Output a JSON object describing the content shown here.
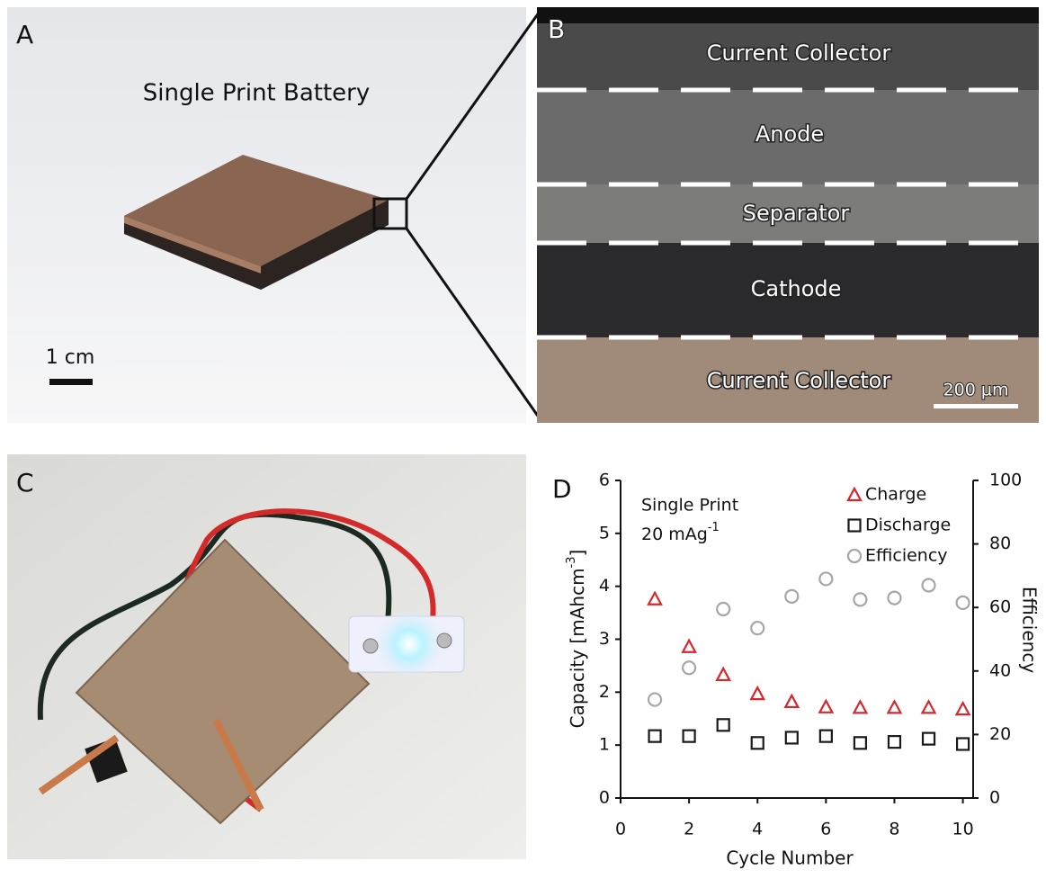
{
  "panels": {
    "a": {
      "label": "A",
      "title": "Single Print Battery",
      "scale_bar": "1 cm"
    },
    "b": {
      "label": "B",
      "layers": [
        "Current Collector",
        "Anode",
        "Separator",
        "Cathode",
        "Current Collector"
      ],
      "scale_bar": "200 µm"
    },
    "c": {
      "label": "C"
    },
    "d": {
      "label": "D"
    }
  },
  "chart_data": {
    "type": "scatter",
    "annotation": {
      "line1": "Single Print",
      "line2": "20 mAg",
      "line2_sup": "-1"
    },
    "x_label": "Cycle Number",
    "y_label": {
      "text": "Capacity [mAhcm",
      "sup": "-3",
      "end": "]"
    },
    "y2_label": "Efficiency",
    "x": [
      1,
      2,
      3,
      4,
      5,
      6,
      7,
      8,
      9,
      10
    ],
    "series": [
      {
        "name": "Charge",
        "color": "#d9262b",
        "marker": "triangle",
        "values": [
          3.76,
          2.86,
          2.33,
          1.97,
          1.82,
          1.72,
          1.71,
          1.71,
          1.71,
          1.68
        ]
      },
      {
        "name": "Discharge",
        "color": "#1a1a1a",
        "marker": "square",
        "values": [
          1.17,
          1.17,
          1.38,
          1.04,
          1.14,
          1.17,
          1.04,
          1.06,
          1.12,
          1.02
        ]
      },
      {
        "name": "Efficiency",
        "color": "#a6a6a6",
        "marker": "circle",
        "axis": "y2",
        "values": [
          31,
          41,
          59.5,
          53.5,
          63.5,
          69,
          62.5,
          63,
          67,
          61.5
        ]
      }
    ],
    "xlim": [
      0,
      10.3
    ],
    "xticks": [
      0,
      2,
      4,
      6,
      8,
      10
    ],
    "ylim": [
      0,
      6
    ],
    "yticks": [
      0,
      1,
      2,
      3,
      4,
      5,
      6
    ],
    "y2lim": [
      0,
      100
    ],
    "y2ticks": [
      0,
      20,
      40,
      60,
      80,
      100
    ],
    "legend": "top-right"
  }
}
